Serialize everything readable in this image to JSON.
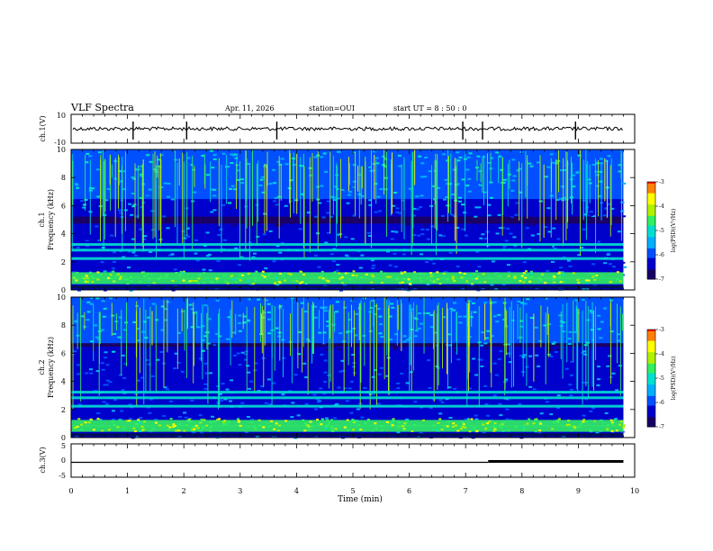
{
  "header": {
    "title": "VLF Spectra",
    "date": "Apr. 11, 2026",
    "station": "station=OUI",
    "start": "start  UT =  8 : 50 : 0"
  },
  "colors": {
    "colormap": [
      "#1a0066",
      "#0000cc",
      "#0050ff",
      "#00b0ff",
      "#00e0d0",
      "#30f060",
      "#b0f000",
      "#ffff00",
      "#ff8000",
      "#ff0000",
      "#ffffff"
    ],
    "trace": "#000000",
    "axis": "#000000"
  },
  "chart_data": [
    {
      "type": "line",
      "name": "ch1-waveform",
      "ylabel": "ch.1(V)",
      "ylim": [
        -10,
        10
      ],
      "yticks": [
        "10",
        "-10"
      ],
      "xlim": [
        0,
        10
      ],
      "x": [
        0,
        9.8
      ],
      "y": [
        0,
        0
      ],
      "spikes_min": [
        1.1,
        2.05,
        3.65,
        6.95,
        7.3,
        8.95
      ]
    },
    {
      "type": "heatmap",
      "name": "ch1-spectrogram",
      "ylabel": "Frequency (kHz)",
      "channel_label": "ch.1",
      "ylim": [
        0,
        10
      ],
      "yticks": [
        "0",
        "2",
        "4",
        "6",
        "8",
        "10"
      ],
      "xlim": [
        0,
        10
      ],
      "data_xmax": 9.8,
      "bands_khz": [
        0.6,
        1.0,
        2.2,
        2.8,
        3.2
      ],
      "dark_band_khz": [
        4.6,
        5.2
      ],
      "colorbar": {
        "label": "log(PSD)(V²/Hz)",
        "range": [
          -7,
          -3
        ],
        "ticks": [
          "-3",
          "-4",
          "-5",
          "-6",
          "-7"
        ]
      }
    },
    {
      "type": "heatmap",
      "name": "ch2-spectrogram",
      "ylabel": "Frequency (kHz)",
      "channel_label": "ch.2",
      "ylim": [
        0,
        10
      ],
      "yticks": [
        "0",
        "2",
        "4",
        "6",
        "8",
        "10"
      ],
      "xlim": [
        0,
        10
      ],
      "data_xmax": 9.8,
      "bands_khz": [
        0.6,
        1.0,
        2.2,
        2.8,
        3.2
      ],
      "dark_band_khz": [
        6.3,
        6.6
      ],
      "colorbar": {
        "label": "log(PSD)(V²/Hz)",
        "range": [
          -7,
          -3
        ],
        "ticks": [
          "-3",
          "-4",
          "-5",
          "-6",
          "-7"
        ]
      }
    },
    {
      "type": "line",
      "name": "ch3-level",
      "ylabel": "ch.3(V)",
      "ylim": [
        -5,
        5
      ],
      "yticks": [
        "5",
        "0",
        "-5"
      ],
      "xlim": [
        0,
        10
      ],
      "x": [
        0,
        7.4,
        7.4,
        9.8
      ],
      "y": [
        0,
        0,
        0,
        0
      ],
      "thick_from_min": 7.4
    }
  ],
  "xaxis": {
    "label": "Time (min)",
    "ticks": [
      "0",
      "1",
      "2",
      "3",
      "4",
      "5",
      "6",
      "7",
      "8",
      "9",
      "10"
    ]
  }
}
